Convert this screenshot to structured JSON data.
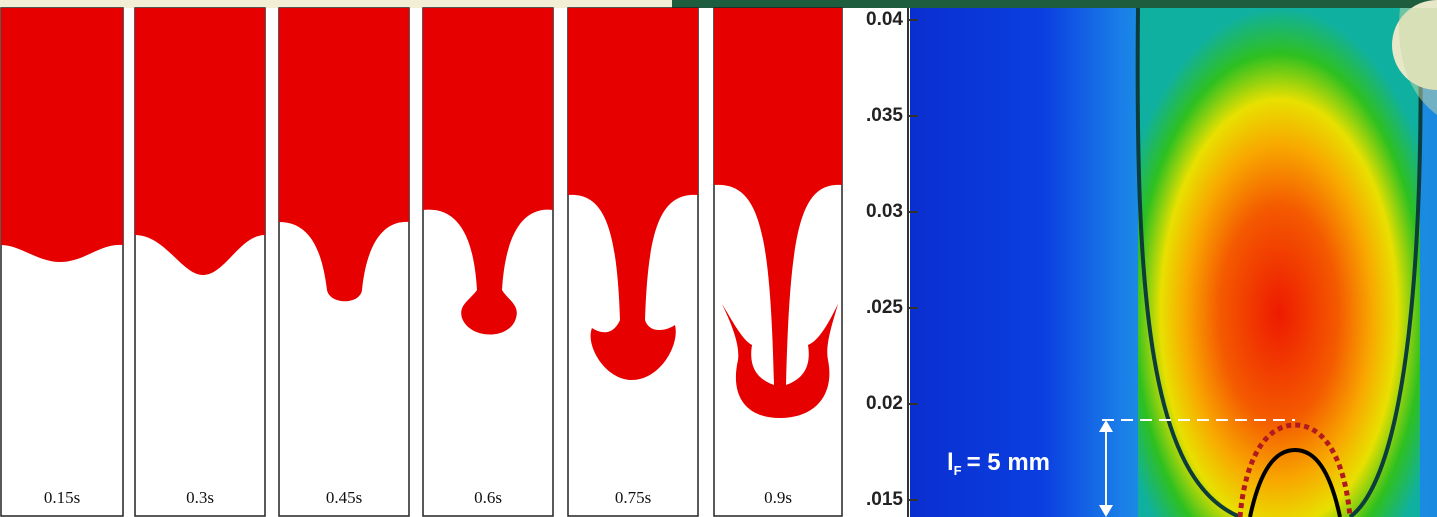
{
  "panels": {
    "labels": [
      "0.15s",
      "0.3s",
      "0.45s",
      "0.6s",
      "0.75s",
      "0.9s"
    ]
  },
  "flame_plot": {
    "yticks": [
      "0.04",
      ".035",
      "0.03",
      ".025",
      "0.02",
      ".015"
    ],
    "annotation": {
      "symbol": "l",
      "subscript": "F",
      "text": "= 5 mm"
    }
  }
}
